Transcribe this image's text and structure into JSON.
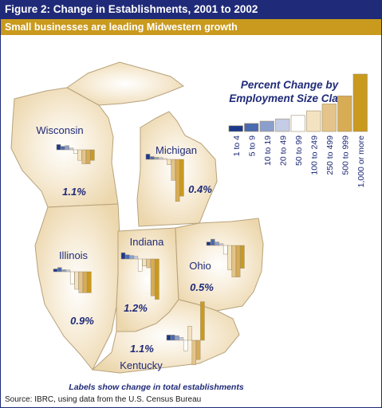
{
  "title": "Figure 2: Change in Establishments, 2001 to 2002",
  "subtitle": "Small businesses are leading Midwestern growth",
  "legend": {
    "title_line1": "Percent Change by",
    "title_line2": "Employment Size Class",
    "classes": [
      "1 to 4",
      "5 to 9",
      "10 to 19",
      "20 to 49",
      "50 to 99",
      "100 to 249",
      "250 to 499",
      "500 to 999",
      "1,000 or more"
    ],
    "colors": [
      "#1b3a8c",
      "#4a6aae",
      "#8a9fcd",
      "#c4cce6",
      "#ffffff",
      "#f3e3c1",
      "#e4c48a",
      "#d8ac55",
      "#c99a1e"
    ],
    "relative_heights": [
      0.1,
      0.14,
      0.18,
      0.22,
      0.28,
      0.36,
      0.48,
      0.62,
      1.0
    ]
  },
  "note": "Labels show change in total establishments",
  "source": "Source: IBRC, using data from the U.S. Census Bureau",
  "states": [
    {
      "name": "Wisconsin",
      "total_label": "1.1%"
    },
    {
      "name": "Michigan",
      "total_label": "0.4%"
    },
    {
      "name": "Illinois",
      "total_label": "0.9%"
    },
    {
      "name": "Indiana",
      "total_label": "1.2%"
    },
    {
      "name": "Ohio",
      "total_label": "0.5%"
    },
    {
      "name": "Kentucky",
      "total_label": "1.1%"
    }
  ],
  "chart_data": {
    "type": "bar",
    "title": "Percent Change by Employment Size Class",
    "categories": [
      "1 to 4",
      "5 to 9",
      "10 to 19",
      "20 to 49",
      "50 to 99",
      "100 to 249",
      "250 to 499",
      "500 to 999",
      "1,000 or more"
    ],
    "series": [
      {
        "name": "Wisconsin",
        "total": 1.1,
        "values": [
          1.5,
          1.0,
          1.2,
          0.5,
          -1.0,
          -3.0,
          -4.0,
          -4.0,
          -3.0
        ]
      },
      {
        "name": "Michigan",
        "total": 0.4,
        "values": [
          1.5,
          0.8,
          0.6,
          0.5,
          0.0,
          -1.5,
          -6.0,
          -12.0,
          -10.5
        ]
      },
      {
        "name": "Illinois",
        "total": 0.9,
        "values": [
          0.8,
          1.2,
          0.6,
          0.5,
          -3.5,
          -5.0,
          -6.0,
          -6.0,
          -6.0
        ]
      },
      {
        "name": "Indiana",
        "total": 1.2,
        "values": [
          1.8,
          1.2,
          1.0,
          0.8,
          -3.5,
          -2.0,
          -2.5,
          -10.5,
          -11.5
        ]
      },
      {
        "name": "Ohio",
        "total": 0.5,
        "values": [
          1.0,
          1.8,
          1.0,
          0.5,
          -2.5,
          -7.0,
          -9.0,
          -9.0,
          -6.5
        ]
      },
      {
        "name": "Kentucky",
        "total": 1.1,
        "values": [
          1.5,
          1.5,
          1.3,
          0.8,
          -3.0,
          4.0,
          -7.0,
          -5.5,
          11.0
        ]
      }
    ]
  }
}
